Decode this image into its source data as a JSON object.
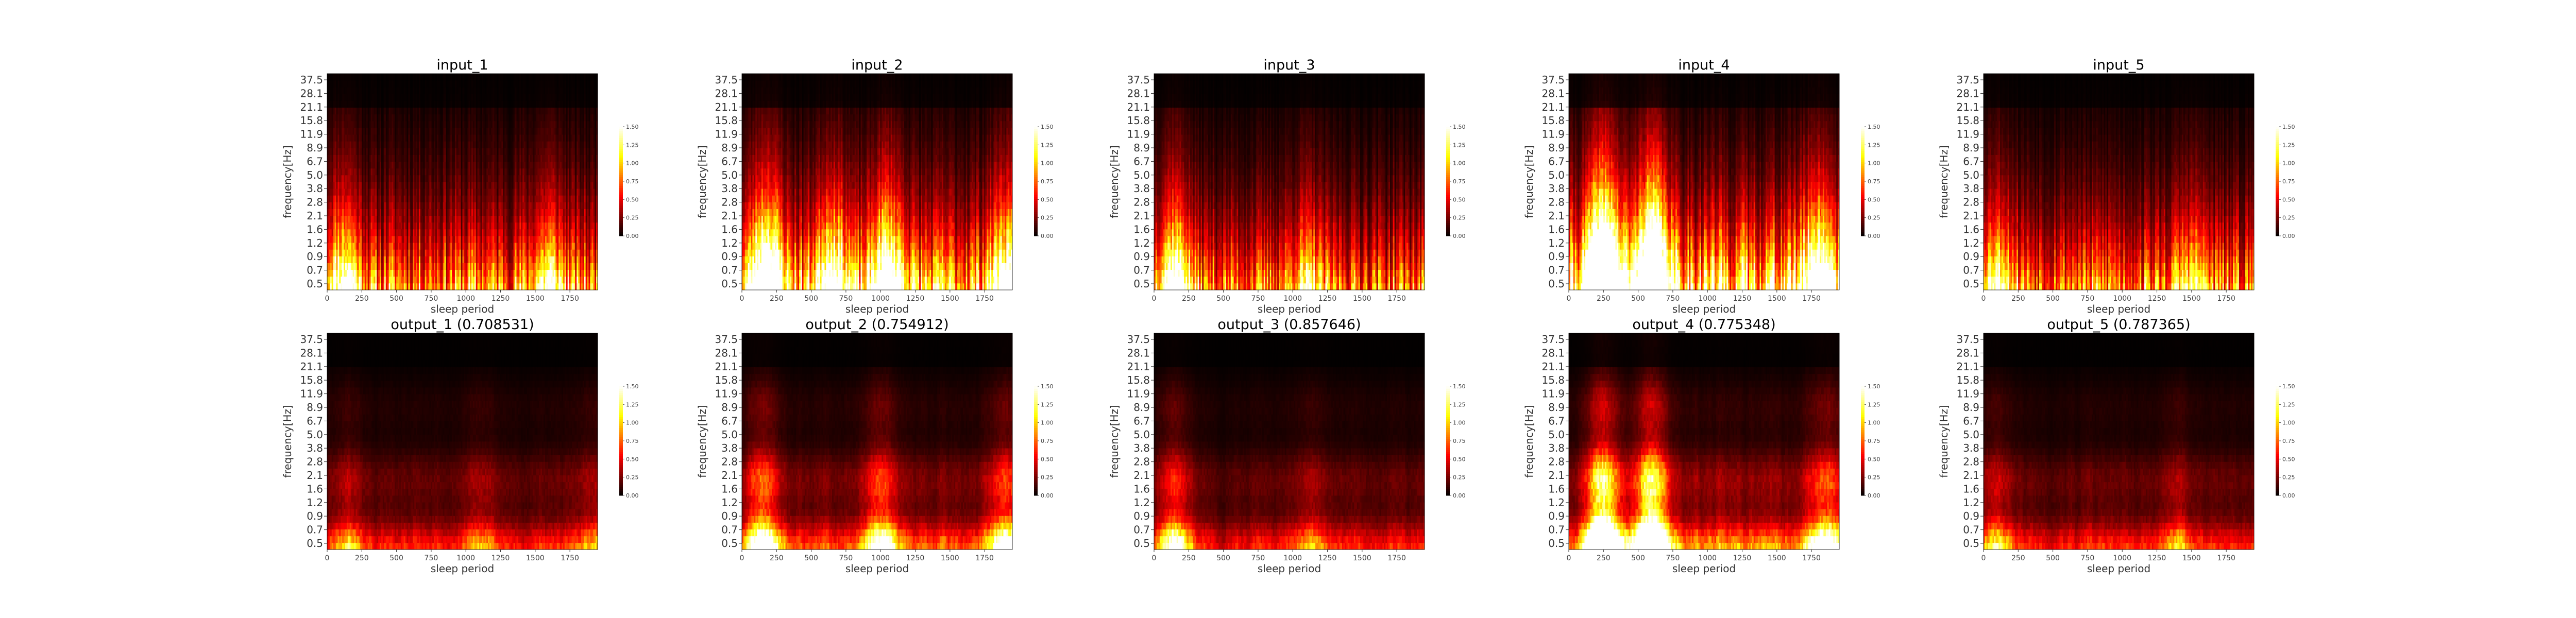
{
  "chart_data": [
    {
      "type": "heatmap",
      "title": "input_1",
      "xlabel": "sleep period",
      "ylabel": "frequency[Hz]",
      "xticks": [
        "0",
        "250",
        "500",
        "750",
        "1000",
        "1250",
        "1500",
        "1750"
      ],
      "xlim": [
        0,
        1950
      ],
      "yticks": [
        "0.5",
        "0.7",
        "0.9",
        "1.2",
        "1.6",
        "2.1",
        "2.8",
        "3.8",
        "5.0",
        "6.7",
        "8.9",
        "11.9",
        "15.8",
        "21.1",
        "28.1",
        "37.5"
      ],
      "colorbar": {
        "ticks": [
          "0.00",
          "0.25",
          "0.50",
          "0.75",
          "1.00",
          "1.25",
          "1.50"
        ],
        "range": [
          0,
          1.5
        ]
      },
      "colormap": "hot",
      "seed": 11,
      "low_gain": 1.15,
      "hotspots": [
        [
          120,
          0.9
        ],
        [
          1600,
          0.6
        ]
      ]
    },
    {
      "type": "heatmap",
      "title": "input_2",
      "xlabel": "sleep period",
      "ylabel": "frequency[Hz]",
      "xticks": [
        "0",
        "250",
        "500",
        "750",
        "1000",
        "1250",
        "1500",
        "1750"
      ],
      "xlim": [
        0,
        1950
      ],
      "yticks": [
        "0.5",
        "0.7",
        "0.9",
        "1.2",
        "1.6",
        "2.1",
        "2.8",
        "3.8",
        "5.0",
        "6.7",
        "8.9",
        "11.9",
        "15.8",
        "21.1",
        "28.1",
        "37.5"
      ],
      "colorbar": {
        "ticks": [
          "0.00",
          "0.25",
          "0.50",
          "0.75",
          "1.00",
          "1.25",
          "1.50"
        ],
        "range": [
          0,
          1.5
        ]
      },
      "colormap": "hot",
      "seed": 23,
      "low_gain": 1.35,
      "hotspots": [
        [
          180,
          1.4
        ],
        [
          650,
          1.0
        ],
        [
          1050,
          1.2
        ],
        [
          1900,
          0.9
        ]
      ]
    },
    {
      "type": "heatmap",
      "title": "input_3",
      "xlabel": "sleep period",
      "ylabel": "frequency[Hz]",
      "xticks": [
        "0",
        "250",
        "500",
        "750",
        "1000",
        "1250",
        "1500",
        "1750"
      ],
      "xlim": [
        0,
        1950
      ],
      "yticks": [
        "0.5",
        "0.7",
        "0.9",
        "1.2",
        "1.6",
        "2.1",
        "2.8",
        "3.8",
        "5.0",
        "6.7",
        "8.9",
        "11.9",
        "15.8",
        "21.1",
        "28.1",
        "37.5"
      ],
      "colorbar": {
        "ticks": [
          "0.00",
          "0.25",
          "0.50",
          "0.75",
          "1.00",
          "1.25",
          "1.50"
        ],
        "range": [
          0,
          1.5
        ]
      },
      "colormap": "hot",
      "seed": 37,
      "low_gain": 1.05,
      "hotspots": [
        [
          150,
          1.3
        ],
        [
          1100,
          0.5
        ]
      ]
    },
    {
      "type": "heatmap",
      "title": "input_4",
      "xlabel": "sleep period",
      "ylabel": "frequency[Hz]",
      "xticks": [
        "0",
        "250",
        "500",
        "750",
        "1000",
        "1250",
        "1500",
        "1750"
      ],
      "xlim": [
        0,
        1950
      ],
      "yticks": [
        "0.5",
        "0.7",
        "0.9",
        "1.2",
        "1.6",
        "2.1",
        "2.8",
        "3.8",
        "5.0",
        "6.7",
        "8.9",
        "11.9",
        "15.8",
        "21.1",
        "28.1",
        "37.5"
      ],
      "colorbar": {
        "ticks": [
          "0.00",
          "0.25",
          "0.50",
          "0.75",
          "1.00",
          "1.25",
          "1.50"
        ],
        "range": [
          0,
          1.5
        ]
      },
      "colormap": "hot",
      "seed": 41,
      "low_gain": 1.6,
      "hotspots": [
        [
          250,
          2.0
        ],
        [
          600,
          1.8
        ],
        [
          1800,
          0.9
        ]
      ]
    },
    {
      "type": "heatmap",
      "title": "input_5",
      "xlabel": "sleep period",
      "ylabel": "frequency[Hz]",
      "xticks": [
        "0",
        "250",
        "500",
        "750",
        "1000",
        "1250",
        "1500",
        "1750"
      ],
      "xlim": [
        0,
        1950
      ],
      "yticks": [
        "0.5",
        "0.7",
        "0.9",
        "1.2",
        "1.6",
        "2.1",
        "2.8",
        "3.8",
        "5.0",
        "6.7",
        "8.9",
        "11.9",
        "15.8",
        "21.1",
        "28.1",
        "37.5"
      ],
      "colorbar": {
        "ticks": [
          "0.00",
          "0.25",
          "0.50",
          "0.75",
          "1.00",
          "1.25",
          "1.50"
        ],
        "range": [
          0,
          1.5
        ]
      },
      "colormap": "hot",
      "seed": 53,
      "low_gain": 1.1,
      "hotspots": [
        [
          100,
          0.8
        ],
        [
          1500,
          0.5
        ]
      ]
    },
    {
      "type": "heatmap",
      "title": "output_1 (0.708531)",
      "xlabel": "sleep period",
      "ylabel": "frequency[Hz]",
      "xticks": [
        "0",
        "250",
        "500",
        "750",
        "1000",
        "1250",
        "1500",
        "1750"
      ],
      "xlim": [
        0,
        1950
      ],
      "yticks": [
        "0.5",
        "0.7",
        "0.9",
        "1.2",
        "1.6",
        "2.1",
        "2.8",
        "3.8",
        "5.0",
        "6.7",
        "8.9",
        "11.9",
        "15.8",
        "21.1",
        "28.1",
        "37.5"
      ],
      "colorbar": {
        "ticks": [
          "0.00",
          "0.25",
          "0.50",
          "0.75",
          "1.00",
          "1.25",
          "1.50"
        ],
        "range": [
          0,
          1.5
        ]
      },
      "colormap": "hot",
      "seed": 61,
      "low_gain": 1.0,
      "smooth": true,
      "hotspots": [
        [
          150,
          0.5
        ],
        [
          1100,
          0.4
        ],
        [
          1900,
          0.4
        ]
      ]
    },
    {
      "type": "heatmap",
      "title": "output_2 (0.754912)",
      "xlabel": "sleep period",
      "ylabel": "frequency[Hz]",
      "xticks": [
        "0",
        "250",
        "500",
        "750",
        "1000",
        "1250",
        "1500",
        "1750"
      ],
      "xlim": [
        0,
        1950
      ],
      "yticks": [
        "0.5",
        "0.7",
        "0.9",
        "1.2",
        "1.6",
        "2.1",
        "2.8",
        "3.8",
        "5.0",
        "6.7",
        "8.9",
        "11.9",
        "15.8",
        "21.1",
        "28.1",
        "37.5"
      ],
      "colorbar": {
        "ticks": [
          "0.00",
          "0.25",
          "0.50",
          "0.75",
          "1.00",
          "1.25",
          "1.50"
        ],
        "range": [
          0,
          1.5
        ]
      },
      "colormap": "hot",
      "seed": 71,
      "low_gain": 1.25,
      "smooth": true,
      "hotspots": [
        [
          150,
          1.1
        ],
        [
          1000,
          1.0
        ],
        [
          1900,
          0.9
        ]
      ]
    },
    {
      "type": "heatmap",
      "title": "output_3 (0.857646)",
      "xlabel": "sleep period",
      "ylabel": "frequency[Hz]",
      "xticks": [
        "0",
        "250",
        "500",
        "750",
        "1000",
        "1250",
        "1500",
        "1750"
      ],
      "xlim": [
        0,
        1950
      ],
      "yticks": [
        "0.5",
        "0.7",
        "0.9",
        "1.2",
        "1.6",
        "2.1",
        "2.8",
        "3.8",
        "5.0",
        "6.7",
        "8.9",
        "11.9",
        "15.8",
        "21.1",
        "28.1",
        "37.5"
      ],
      "colorbar": {
        "ticks": [
          "0.00",
          "0.25",
          "0.50",
          "0.75",
          "1.00",
          "1.25",
          "1.50"
        ],
        "range": [
          0,
          1.5
        ]
      },
      "colormap": "hot",
      "seed": 83,
      "low_gain": 1.0,
      "smooth": true,
      "hotspots": [
        [
          150,
          1.1
        ],
        [
          1150,
          0.4
        ]
      ]
    },
    {
      "type": "heatmap",
      "title": "output_4 (0.775348)",
      "xlabel": "sleep period",
      "ylabel": "frequency[Hz]",
      "xticks": [
        "0",
        "250",
        "500",
        "750",
        "1000",
        "1250",
        "1500",
        "1750"
      ],
      "xlim": [
        0,
        1950
      ],
      "yticks": [
        "0.5",
        "0.7",
        "0.9",
        "1.2",
        "1.6",
        "2.1",
        "2.8",
        "3.8",
        "5.0",
        "6.7",
        "8.9",
        "11.9",
        "15.8",
        "21.1",
        "28.1",
        "37.5"
      ],
      "colorbar": {
        "ticks": [
          "0.00",
          "0.25",
          "0.50",
          "0.75",
          "1.00",
          "1.25",
          "1.50"
        ],
        "range": [
          0,
          1.5
        ]
      },
      "colormap": "hot",
      "seed": 97,
      "low_gain": 1.5,
      "smooth": true,
      "hotspots": [
        [
          250,
          2.0
        ],
        [
          600,
          1.9
        ],
        [
          1850,
          0.8
        ]
      ]
    },
    {
      "type": "heatmap",
      "title": "output_5 (0.787365)",
      "xlabel": "sleep period",
      "ylabel": "frequency[Hz]",
      "xticks": [
        "0",
        "250",
        "500",
        "750",
        "1000",
        "1250",
        "1500",
        "1750"
      ],
      "xlim": [
        0,
        1950
      ],
      "yticks": [
        "0.5",
        "0.7",
        "0.9",
        "1.2",
        "1.6",
        "2.1",
        "2.8",
        "3.8",
        "5.0",
        "6.7",
        "8.9",
        "11.9",
        "15.8",
        "21.1",
        "28.1",
        "37.5"
      ],
      "colorbar": {
        "ticks": [
          "0.00",
          "0.25",
          "0.50",
          "0.75",
          "1.00",
          "1.25",
          "1.50"
        ],
        "range": [
          0,
          1.5
        ]
      },
      "colormap": "hot",
      "seed": 101,
      "low_gain": 1.05,
      "smooth": true,
      "hotspots": [
        [
          100,
          0.6
        ],
        [
          1400,
          0.4
        ]
      ]
    }
  ]
}
